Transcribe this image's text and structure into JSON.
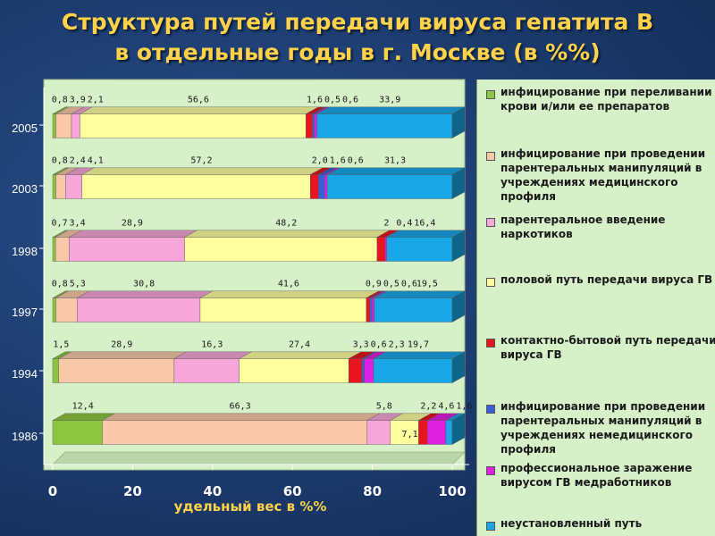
{
  "title_line1": "Структура путей передачи вируса гепатита В",
  "title_line2": "в отдельные годы в г. Москве (в %%)",
  "colors": {
    "plot_bg": "#d6f0c8",
    "title": "#ffd24a",
    "axis_text": "#ffffff",
    "xlabel": "#ffd24a"
  },
  "legend_items": [
    {
      "label": "инфицирование при переливании крови и/или ее препаратов",
      "color": "#8cc63f"
    },
    {
      "label": "инфицирование при проведении парентеральных манипуляций в учреждениях медицинского профиля",
      "color": "#f9c8a8"
    },
    {
      "label": "парентеральное введение наркотиков",
      "color": "#f6a6d8"
    },
    {
      "label": "половой путь передачи вируса ГВ",
      "color": "#ffffa0"
    },
    {
      "label": "контактно-бытовой путь передачи вируса ГВ",
      "color": "#e8141e"
    },
    {
      "label": "инфицирование при проведении парентеральных манипуляций в учреждениях немедицинского профиля",
      "color": "#3b5fd9"
    },
    {
      "label": "профессиональное заражение вирусом ГВ медработников",
      "color": "#e020e0"
    },
    {
      "label": "неустановленный путь",
      "color": "#19a6e6"
    }
  ],
  "chart_data": {
    "type": "bar",
    "orientation": "horizontal",
    "stacked": true,
    "xlabel": "удельный вес в %%",
    "xlim": [
      0,
      100
    ],
    "xticks": [
      "0",
      "20",
      "40",
      "60",
      "80",
      "100"
    ],
    "categories": [
      "2005",
      "2003",
      "1998",
      "1997",
      "1994",
      "1986"
    ],
    "series": [
      {
        "name": "инфицирование при переливании крови и/или ее препаратов",
        "values": [
          0.8,
          0.8,
          0.7,
          0.8,
          1.5,
          12.4
        ],
        "labels": [
          "0,8",
          "0,8",
          "0,7",
          "0,8",
          "1,5",
          "12,4"
        ]
      },
      {
        "name": "инфицирование при проведении парентеральных манипуляций в учреждениях медицинского профиля",
        "values": [
          3.9,
          2.4,
          3.4,
          5.3,
          28.9,
          66.3
        ],
        "labels": [
          "3,9",
          "2,4",
          "3,4",
          "5,3",
          "28,9",
          "66,3"
        ]
      },
      {
        "name": "парентеральное введение наркотиков",
        "values": [
          2.1,
          4.1,
          28.9,
          30.8,
          16.3,
          5.8
        ],
        "labels": [
          "2,1",
          "4,1",
          "28,9",
          "30,8",
          "16,3",
          "5,8"
        ]
      },
      {
        "name": "половой путь передачи вируса ГВ",
        "values": [
          56.6,
          57.2,
          48.2,
          41.6,
          27.4,
          7.1
        ],
        "labels": [
          "56,6",
          "57,2",
          "48,2",
          "41,6",
          "27,4",
          "7,1"
        ]
      },
      {
        "name": "контактно-бытовой путь передачи вируса ГВ",
        "values": [
          1.6,
          2.0,
          2.0,
          0.9,
          3.3,
          2.2
        ],
        "labels": [
          "1,6",
          "2,0",
          "2",
          "0,9",
          "3,3",
          "2,2"
        ]
      },
      {
        "name": "инфицирование при проведении парентеральных манипуляций в учреждениях немедицинского профиля",
        "values": [
          0.5,
          1.6,
          0,
          0.5,
          0.6,
          0
        ],
        "labels": [
          "0,5",
          "1,6",
          "",
          "0,5",
          "0,6",
          ""
        ]
      },
      {
        "name": "профессиональное заражение вирусом ГВ медработников",
        "values": [
          0.6,
          0.6,
          0.4,
          0.6,
          2.3,
          4.6
        ],
        "labels": [
          "0,6",
          "0,6",
          "0,4",
          "0,6",
          "2,3",
          "4,6"
        ]
      },
      {
        "name": "неустановленный путь",
        "values": [
          33.9,
          31.3,
          16.4,
          19.5,
          19.7,
          1.6
        ],
        "labels": [
          "33,9",
          "31,3",
          "16,4",
          "19,5",
          "19,7",
          "1,6"
        ]
      }
    ]
  }
}
